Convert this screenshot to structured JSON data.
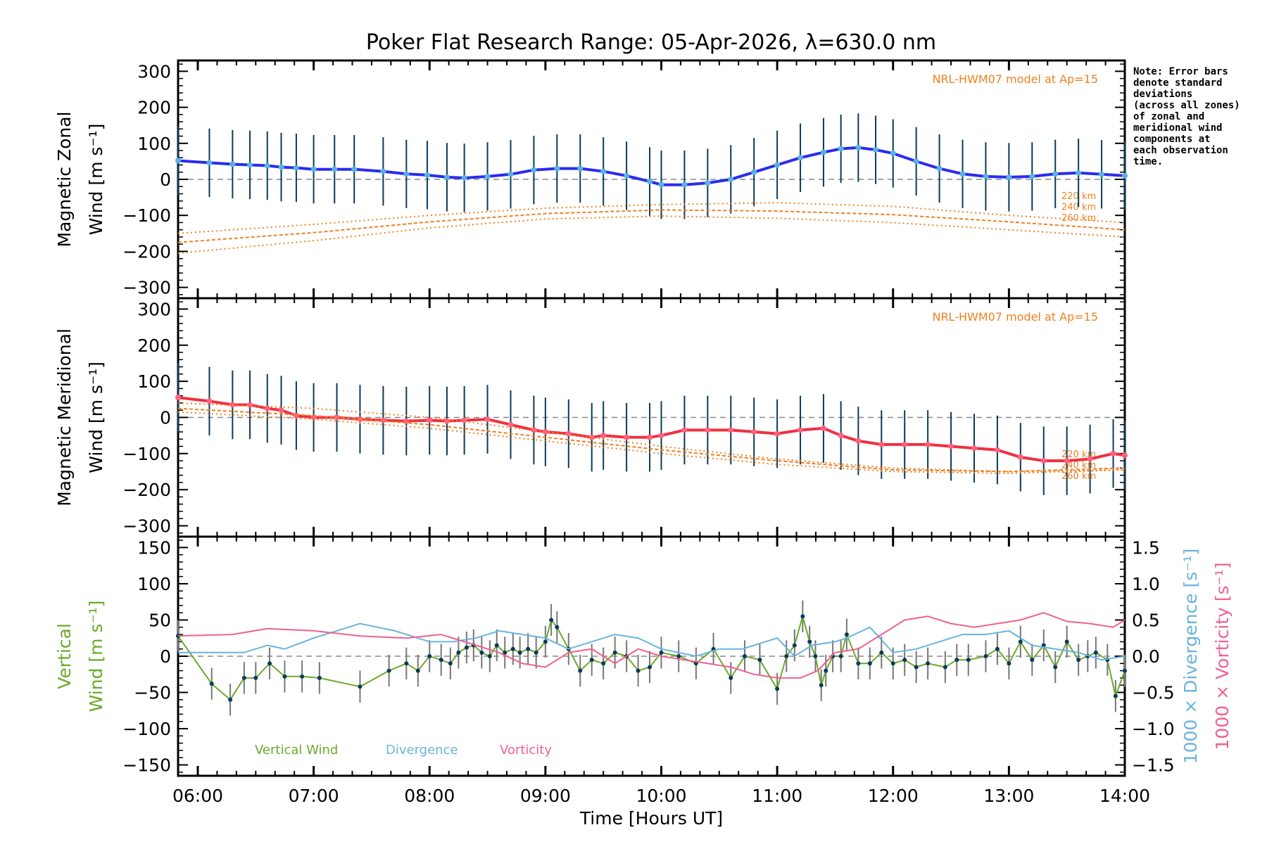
{
  "chart_data": [
    {
      "type": "line",
      "panel": "zonal",
      "title": "Poker Flat Research Range: 05-Apr-2026, λ=630.0 nm",
      "ylabel_line1": "Magnetic Zonal",
      "ylabel_line2": "Wind [m s⁻¹]",
      "ylim": [
        -330,
        330
      ],
      "yticks": [
        300,
        200,
        100,
        0,
        -100,
        -200,
        -300
      ],
      "xlim": [
        5.83,
        14.0
      ],
      "model_label": "NRL-HWM07 model at Ap=15",
      "altitude_labels": [
        "220 km",
        "240 km",
        "260 km"
      ],
      "series": [
        {
          "name": "Zonal Wind (mean)",
          "color": "#2b2bf0",
          "x": [
            5.83,
            6.1,
            6.3,
            6.45,
            6.6,
            6.72,
            6.85,
            7.0,
            7.18,
            7.35,
            7.6,
            7.8,
            7.98,
            8.15,
            8.3,
            8.5,
            8.7,
            8.9,
            9.1,
            9.3,
            9.5,
            9.7,
            9.9,
            10.0,
            10.2,
            10.4,
            10.6,
            10.8,
            11.0,
            11.2,
            11.4,
            11.55,
            11.7,
            11.85,
            12.0,
            12.2,
            12.4,
            12.6,
            12.8,
            13.0,
            13.2,
            13.4,
            13.6,
            13.8,
            14.0
          ],
          "values": [
            52,
            46,
            42,
            40,
            38,
            34,
            32,
            28,
            28,
            28,
            22,
            15,
            12,
            6,
            4,
            8,
            14,
            26,
            30,
            30,
            22,
            10,
            -6,
            -15,
            -15,
            -10,
            0,
            20,
            40,
            60,
            75,
            85,
            88,
            82,
            72,
            50,
            30,
            15,
            8,
            6,
            8,
            15,
            18,
            14,
            10
          ]
        },
        {
          "name": "HWM 220 km",
          "color": "#f08020",
          "style": "dotted",
          "x": [
            5.83,
            7,
            8,
            9,
            10,
            11,
            12,
            13,
            14
          ],
          "values": [
            -150,
            -125,
            -100,
            -80,
            -70,
            -65,
            -75,
            -100,
            -120
          ]
        },
        {
          "name": "HWM 240 km",
          "color": "#f08020",
          "style": "dashed",
          "x": [
            5.83,
            7,
            8,
            9,
            10,
            11,
            12,
            13,
            14
          ],
          "values": [
            -175,
            -148,
            -118,
            -95,
            -85,
            -88,
            -98,
            -118,
            -140
          ]
        },
        {
          "name": "HWM 260 km",
          "color": "#f08020",
          "style": "dotted",
          "x": [
            5.83,
            7,
            8,
            9,
            10,
            11,
            12,
            13,
            14
          ],
          "values": [
            -205,
            -170,
            -135,
            -110,
            -102,
            -108,
            -120,
            -140,
            -160
          ]
        }
      ]
    },
    {
      "type": "line",
      "panel": "meridional",
      "ylabel_line1": "Magnetic Meridional",
      "ylabel_line2": "Wind [m s⁻¹]",
      "ylim": [
        -330,
        330
      ],
      "yticks": [
        300,
        200,
        100,
        0,
        -100,
        -200,
        -300
      ],
      "xlim": [
        5.83,
        14.0
      ],
      "model_label": "NRL-HWM07 model at Ap=15",
      "altitude_labels": [
        "220 km",
        "240 km",
        "260 km"
      ],
      "series": [
        {
          "name": "Meridional Wind (mean)",
          "color": "#f03040",
          "x": [
            5.83,
            6.1,
            6.3,
            6.45,
            6.6,
            6.72,
            6.85,
            7.0,
            7.2,
            7.4,
            7.6,
            7.8,
            8.0,
            8.15,
            8.3,
            8.5,
            8.7,
            8.9,
            9.0,
            9.2,
            9.4,
            9.5,
            9.7,
            9.9,
            10.0,
            10.2,
            10.4,
            10.6,
            10.8,
            11.0,
            11.2,
            11.4,
            11.55,
            11.7,
            11.9,
            12.1,
            12.3,
            12.5,
            12.7,
            12.9,
            13.1,
            13.3,
            13.5,
            13.7,
            13.9,
            14.0
          ],
          "values": [
            55,
            45,
            35,
            35,
            25,
            20,
            5,
            0,
            0,
            -5,
            -8,
            -10,
            -8,
            -10,
            -8,
            -5,
            -20,
            -35,
            -40,
            -45,
            -55,
            -50,
            -55,
            -55,
            -50,
            -35,
            -35,
            -35,
            -40,
            -45,
            -35,
            -30,
            -50,
            -65,
            -75,
            -75,
            -75,
            -80,
            -85,
            -90,
            -110,
            -120,
            -120,
            -115,
            -100,
            -105
          ]
        },
        {
          "name": "HWM 220 km",
          "color": "#f08020",
          "style": "dotted",
          "x": [
            5.83,
            7,
            8,
            9,
            10,
            11,
            12,
            13,
            14
          ],
          "values": [
            40,
            25,
            0,
            -40,
            -80,
            -115,
            -140,
            -150,
            -145
          ]
        },
        {
          "name": "HWM 240 km",
          "color": "#f08020",
          "style": "dashed",
          "x": [
            5.83,
            7,
            8,
            9,
            10,
            11,
            12,
            13,
            14
          ],
          "values": [
            25,
            5,
            -20,
            -55,
            -90,
            -120,
            -145,
            -150,
            -140
          ]
        },
        {
          "name": "HWM 260 km",
          "color": "#f08020",
          "style": "dotted",
          "x": [
            5.83,
            7,
            8,
            9,
            10,
            11,
            12,
            13,
            14
          ],
          "values": [
            15,
            -5,
            -30,
            -65,
            -100,
            -130,
            -150,
            -155,
            -145
          ]
        }
      ]
    },
    {
      "type": "line",
      "panel": "vertical",
      "xlabel": "Time [Hours UT]",
      "xticks": [
        "06:00",
        "07:00",
        "08:00",
        "09:00",
        "10:00",
        "11:00",
        "12:00",
        "13:00",
        "14:00"
      ],
      "ylabel_line1": "Vertical",
      "ylabel_line2": "Wind [m s⁻¹]",
      "ylim": [
        -165,
        165
      ],
      "yticks": [
        150,
        100,
        50,
        0,
        -50,
        -100,
        -150
      ],
      "y2lim": [
        -1.65,
        1.65
      ],
      "y2ticks": [
        "1.5",
        "1.0",
        "0.5",
        "0.0",
        "−0.5",
        "−1.0",
        "−1.5"
      ],
      "y2label_divergence": "1000 × Divergence [s⁻¹]",
      "y2label_vorticity": "1000 × Vorticity [s⁻¹]",
      "legend": [
        "Vertical Wind",
        "Divergence",
        "Vorticity"
      ],
      "series": [
        {
          "name": "Vertical Wind",
          "color": "#6aaa2a",
          "axis": "left",
          "x": [
            5.83,
            6.12,
            6.28,
            6.4,
            6.5,
            6.62,
            6.75,
            6.9,
            7.05,
            7.4,
            7.65,
            7.8,
            7.9,
            8.0,
            8.1,
            8.18,
            8.25,
            8.32,
            8.38,
            8.45,
            8.52,
            8.58,
            8.65,
            8.72,
            8.78,
            8.85,
            8.92,
            9.0,
            9.05,
            9.1,
            9.2,
            9.3,
            9.4,
            9.5,
            9.6,
            9.7,
            9.8,
            9.9,
            10.0,
            10.15,
            10.3,
            10.45,
            10.6,
            10.72,
            10.85,
            11.0,
            11.08,
            11.15,
            11.22,
            11.28,
            11.33,
            11.38,
            11.42,
            11.48,
            11.55,
            11.6,
            11.7,
            11.8,
            11.9,
            12.0,
            12.1,
            12.2,
            12.3,
            12.45,
            12.55,
            12.65,
            12.8,
            12.9,
            13.0,
            13.1,
            13.2,
            13.3,
            13.4,
            13.5,
            13.6,
            13.68,
            13.75,
            13.85,
            13.92,
            14.0
          ],
          "values": [
            28,
            -38,
            -60,
            -30,
            -30,
            -10,
            -28,
            -28,
            -30,
            -42,
            -20,
            -10,
            -20,
            0,
            -5,
            -10,
            5,
            12,
            15,
            5,
            0,
            15,
            5,
            10,
            5,
            10,
            5,
            20,
            50,
            40,
            10,
            -20,
            -5,
            -10,
            5,
            0,
            -20,
            -15,
            5,
            0,
            -10,
            10,
            -30,
            0,
            -5,
            -45,
            0,
            15,
            55,
            20,
            0,
            -40,
            -20,
            0,
            0,
            30,
            -10,
            -10,
            5,
            -10,
            -5,
            -15,
            -10,
            -15,
            -5,
            -5,
            0,
            10,
            -10,
            20,
            -5,
            15,
            -15,
            20,
            -5,
            0,
            5,
            -5,
            -55,
            -20
          ]
        },
        {
          "name": "Divergence",
          "color": "#6ab4dc",
          "axis": "right",
          "x": [
            5.83,
            6.4,
            6.6,
            6.75,
            7.0,
            7.4,
            7.7,
            8.0,
            8.2,
            8.4,
            8.6,
            8.8,
            9.0,
            9.2,
            9.4,
            9.6,
            9.8,
            10.0,
            10.3,
            10.5,
            10.7,
            11.0,
            11.15,
            11.3,
            11.5,
            11.6,
            11.8,
            12.0,
            12.2,
            12.4,
            12.6,
            12.8,
            13.0,
            13.2,
            13.4,
            13.6,
            13.8,
            14.0
          ],
          "values": [
            0.05,
            0.05,
            0.15,
            0.1,
            0.25,
            0.45,
            0.35,
            0.2,
            0.2,
            0.25,
            0.35,
            0.3,
            0.25,
            0.1,
            0.2,
            0.3,
            0.25,
            0.1,
            0.0,
            0.1,
            0.1,
            0.25,
            0.0,
            0.15,
            0.2,
            0.25,
            0.4,
            0.05,
            0.1,
            0.2,
            0.3,
            0.3,
            0.35,
            0.15,
            0.1,
            0.05,
            -0.05,
            0.0
          ]
        },
        {
          "name": "Vorticity",
          "color": "#f06090",
          "axis": "right",
          "x": [
            5.83,
            6.3,
            6.6,
            7.0,
            7.4,
            7.8,
            8.1,
            8.4,
            8.6,
            8.8,
            9.0,
            9.2,
            9.4,
            9.6,
            9.8,
            10.0,
            10.2,
            10.4,
            10.6,
            10.8,
            11.0,
            11.2,
            11.35,
            11.5,
            11.7,
            11.9,
            12.1,
            12.3,
            12.5,
            12.7,
            12.9,
            13.1,
            13.3,
            13.5,
            13.7,
            13.9,
            14.0
          ],
          "values": [
            0.28,
            0.3,
            0.38,
            0.35,
            0.28,
            0.25,
            0.3,
            0.15,
            0.05,
            -0.1,
            -0.15,
            0.05,
            0.1,
            -0.1,
            0.1,
            0.0,
            -0.05,
            -0.1,
            -0.15,
            -0.25,
            -0.3,
            -0.3,
            -0.2,
            0.05,
            0.1,
            0.3,
            0.5,
            0.55,
            0.45,
            0.4,
            0.45,
            0.5,
            0.6,
            0.48,
            0.45,
            0.4,
            0.5
          ]
        }
      ]
    }
  ],
  "side_note": "Note: Error bars\ndenote standard\ndeviations\n(across all zones)\nof zonal and\nmeridional wind\ncomponents at\neach observation\ntime."
}
